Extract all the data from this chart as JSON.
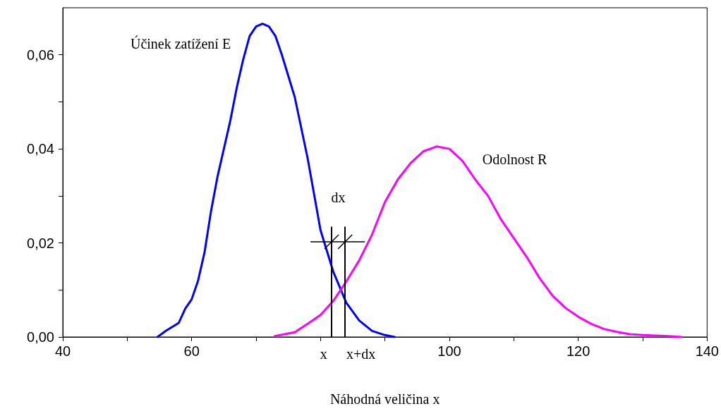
{
  "chart_data": {
    "type": "line",
    "xlabel": "Náhodná veličina x",
    "xlim": [
      40,
      140
    ],
    "xticks": [
      40,
      {
        "value": 50,
        "label": null
      },
      60,
      {
        "value": 70,
        "label": null
      },
      {
        "value": 80,
        "label": null
      },
      {
        "value": 90,
        "label": null
      },
      100,
      {
        "value": 110,
        "label": null
      },
      120,
      {
        "value": 130,
        "label": null
      },
      140
    ],
    "ylim": [
      0,
      0.07
    ],
    "yticks": [
      {
        "value": 0,
        "label": "0,00"
      },
      {
        "value": 0.01,
        "label": null
      },
      {
        "value": 0.02,
        "label": "0,02"
      },
      {
        "value": 0.03,
        "label": null
      },
      {
        "value": 0.04,
        "label": "0,04"
      },
      {
        "value": 0.05,
        "label": null
      },
      {
        "value": 0.06,
        "label": "0,06"
      }
    ],
    "grid": false,
    "legend": false,
    "marker": "none",
    "line_style": "solid",
    "series": [
      {
        "name": "Účinek zatížení E",
        "color": "#0000ff",
        "x": [
          54.7,
          56,
          58,
          59,
          60,
          61,
          62,
          63,
          64,
          65,
          66,
          67,
          68,
          69,
          70,
          71,
          72,
          73,
          74,
          76,
          78,
          80,
          82,
          84,
          86,
          88,
          90,
          91.5
        ],
        "values": [
          0,
          0.0013,
          0.003,
          0.006,
          0.008,
          0.012,
          0.018,
          0.0267,
          0.034,
          0.04,
          0.046,
          0.053,
          0.059,
          0.064,
          0.066,
          0.0666,
          0.066,
          0.064,
          0.06,
          0.051,
          0.038,
          0.0227,
          0.0138,
          0.0073,
          0.0035,
          0.0013,
          0.0004,
          0
        ]
      },
      {
        "name": "Odolnost R",
        "color": "#ff00ff",
        "x": [
          72.9,
          76,
          78,
          80,
          82,
          84,
          86,
          88,
          90,
          92,
          94,
          96,
          98,
          100,
          102,
          104,
          106,
          108,
          110,
          112,
          114,
          116,
          118,
          120,
          122,
          124,
          126,
          128,
          130,
          132,
          134,
          136
        ],
        "values": [
          0.0002,
          0.001,
          0.0028,
          0.0047,
          0.0077,
          0.0118,
          0.0163,
          0.0218,
          0.0287,
          0.0335,
          0.037,
          0.0395,
          0.0405,
          0.04,
          0.0375,
          0.0335,
          0.03,
          0.025,
          0.021,
          0.017,
          0.0125,
          0.0088,
          0.0062,
          0.0043,
          0.0028,
          0.0017,
          0.0011,
          0.0006,
          0.0004,
          0.0003,
          0.0002,
          0
        ]
      }
    ],
    "ref_lines": [
      {
        "axis": "x",
        "value": 81.7,
        "label": "x",
        "color": "#000000"
      },
      {
        "axis": "x",
        "value": 83.8,
        "label": "x+dx",
        "color": "#000000"
      }
    ],
    "annotations": [
      "dx"
    ]
  }
}
